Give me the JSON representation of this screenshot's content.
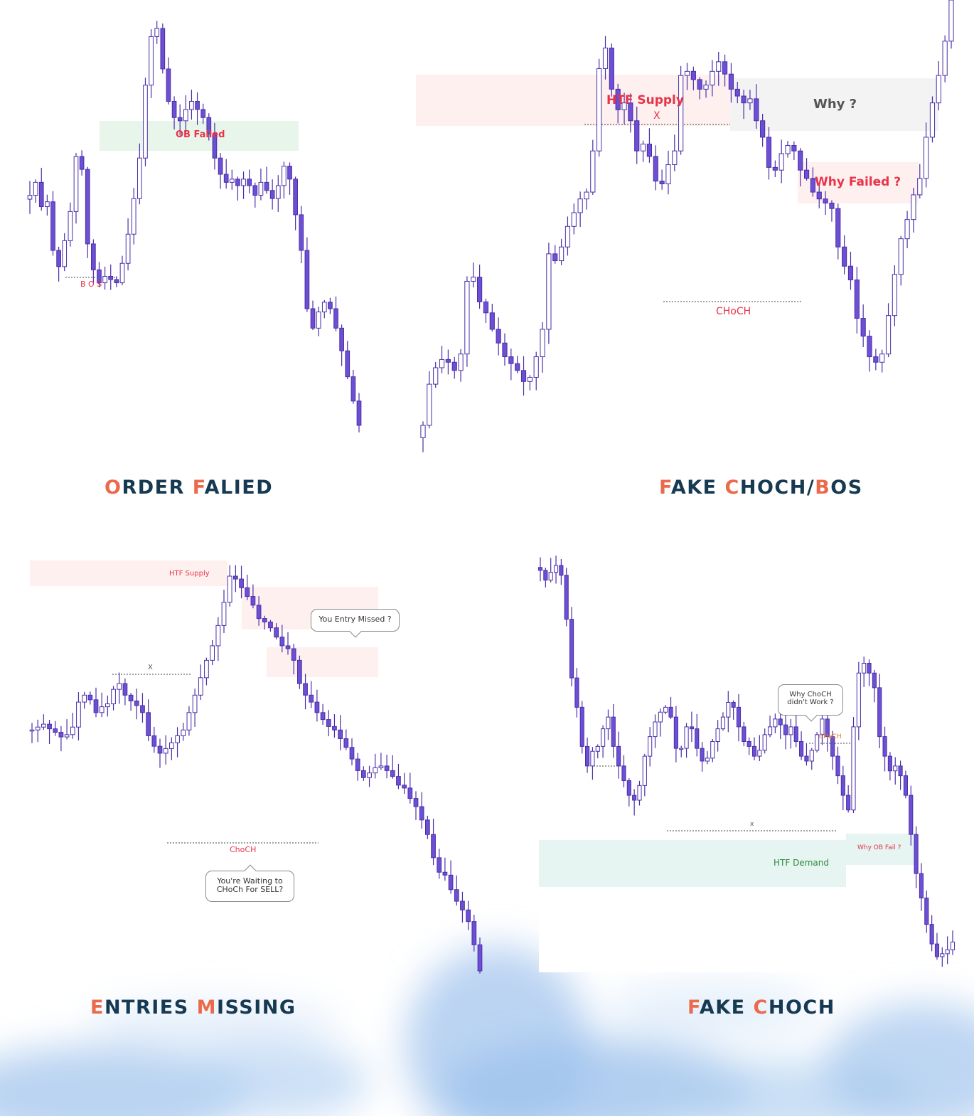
{
  "colors": {
    "candle_fill": "#6d4fd4",
    "candle_edge": "#4a2fa8",
    "candle_hollow": "#ffffff",
    "label_red": "#e8334a",
    "label_green": "#2e8b3a",
    "label_orange": "#e07a1a",
    "title_dark": "#163a52",
    "title_accent": "#ec6a4c",
    "zone_red": "#fdf0ef",
    "zone_green": "#e8f5ea",
    "zone_gray": "#f3f3f3",
    "zone_teal": "#e6f4f2",
    "cloud": "#a9c9ee"
  },
  "panels": {
    "order_failed": {
      "title_accent_1": "O",
      "title_rest_1": "RDER ",
      "title_accent_2": "F",
      "title_rest_2": "ALIED",
      "ob_label": "OB Failed",
      "bos_label": "B O S"
    },
    "fake_choch_bos": {
      "title_accent_1": "F",
      "title_rest_1": "AKE ",
      "title_accent_2": "C",
      "title_rest_2": "HOCH/",
      "title_accent_3": "B",
      "title_rest_3": "OS",
      "supply_label": "HTF Supply",
      "x_mark": "X",
      "why_label": "Why  ?",
      "why_failed_label": "Why Failed ?",
      "choch_label": "CHoCH"
    },
    "entries_missing": {
      "title_accent_1": "E",
      "title_rest_1": "NTRIES ",
      "title_accent_2": "M",
      "title_rest_2": "ISSING",
      "supply_label": "HTF Supply",
      "x_mark": "X",
      "choch_label": "ChoCH",
      "callout_missed": "You Entry Missed  ?",
      "callout_waiting_1": "You're Waiting to",
      "callout_waiting_2": "CHoCh For SELL?"
    },
    "fake_choch": {
      "title_accent_1": "F",
      "title_rest_1": "AKE ",
      "title_accent_2": "C",
      "title_rest_2": "HOCH",
      "choch_label": "CHoCH",
      "x_mark": "x",
      "demand_label": "HTF Demand",
      "ob_fail_label": "Why OB Fail ?",
      "callout_1": "Why ChoCH",
      "callout_2": "didn't Work ?"
    }
  },
  "chart_data": [
    {
      "type": "candlestick",
      "title": "ORDER FALIED",
      "annotations": [
        "OB Failed",
        "B O S"
      ],
      "close_path": [
        152,
        160,
        145,
        148,
        118,
        108,
        124,
        142,
        176,
        168,
        122,
        106,
        98,
        102,
        100,
        98,
        110,
        128,
        150,
        175,
        220,
        250,
        255,
        230,
        210,
        200,
        198,
        205,
        210,
        205,
        200,
        190,
        175,
        165,
        160,
        162,
        158,
        162,
        158,
        152,
        160,
        155,
        150,
        158,
        170,
        162,
        140,
        118,
        82,
        70,
        80,
        86,
        82,
        70,
        56,
        40,
        25,
        10
      ]
    },
    {
      "type": "candlestick",
      "title": "FAKE CHOCH/BOS",
      "annotations": [
        "HTF Supply",
        "X",
        "Why  ?",
        "Why Failed ?",
        "CHoCH"
      ],
      "close_path": [
        10,
        40,
        52,
        58,
        56,
        50,
        62,
        115,
        118,
        100,
        92,
        80,
        70,
        60,
        55,
        50,
        42,
        45,
        60,
        80,
        135,
        130,
        140,
        155,
        165,
        175,
        180,
        210,
        270,
        285,
        255,
        240,
        245,
        232,
        210,
        215,
        206,
        188,
        186,
        200,
        210,
        265,
        268,
        262,
        255,
        258,
        268,
        275,
        266,
        255,
        250,
        245,
        248,
        232,
        220,
        198,
        196,
        208,
        214,
        210,
        196,
        190,
        180,
        175,
        172,
        168,
        140,
        126,
        116,
        88,
        75,
        60,
        56,
        62,
        90,
        120,
        146,
        160,
        178,
        190,
        220,
        245,
        265,
        290,
        320
      ]
    },
    {
      "type": "candlestick",
      "title": "ENTRIES MISSING",
      "annotations": [
        "HTF Supply",
        "X",
        "ChoCH",
        "You Entry Missed  ?",
        "You're Waiting to CHoCh For SELL?"
      ],
      "close_path": [
        70,
        75,
        80,
        72,
        66,
        58,
        62,
        75,
        118,
        130,
        122,
        100,
        110,
        115,
        140,
        150,
        130,
        120,
        112,
        100,
        60,
        42,
        30,
        38,
        48,
        60,
        70,
        100,
        130,
        160,
        190,
        215,
        250,
        290,
        335,
        330,
        315,
        300,
        285,
        262,
        256,
        246,
        230,
        215,
        210,
        190,
        150,
        130,
        118,
        100,
        88,
        76,
        70,
        55,
        40,
        20,
        0,
        -12,
        -4,
        5,
        8,
        0,
        -10,
        -25,
        -30,
        -48,
        -62,
        -85,
        -110,
        -150,
        -175,
        -180,
        -205,
        -225,
        -240,
        -260,
        -300,
        -345
      ]
    },
    {
      "type": "candlestick",
      "title": "FAKE CHOCH",
      "annotations": [
        "CHoCH",
        "x",
        "HTF Demand",
        "Why OB Fail ?",
        "Why ChoCH didn't Work ?"
      ],
      "close_path": [
        430,
        420,
        428,
        435,
        425,
        380,
        320,
        290,
        250,
        230,
        245,
        250,
        268,
        280,
        250,
        230,
        215,
        200,
        195,
        210,
        240,
        260,
        275,
        285,
        290,
        280,
        248,
        248,
        270,
        268,
        248,
        235,
        238,
        255,
        268,
        280,
        295,
        290,
        270,
        255,
        250,
        240,
        246,
        262,
        270,
        278,
        272,
        262,
        270,
        255,
        240,
        235,
        246,
        262,
        278,
        260,
        240,
        220,
        200,
        185,
        270,
        325,
        335,
        325,
        310,
        260,
        240,
        225,
        230,
        220,
        200,
        160,
        120,
        95,
        68,
        48,
        35,
        38,
        42,
        50
      ]
    }
  ]
}
